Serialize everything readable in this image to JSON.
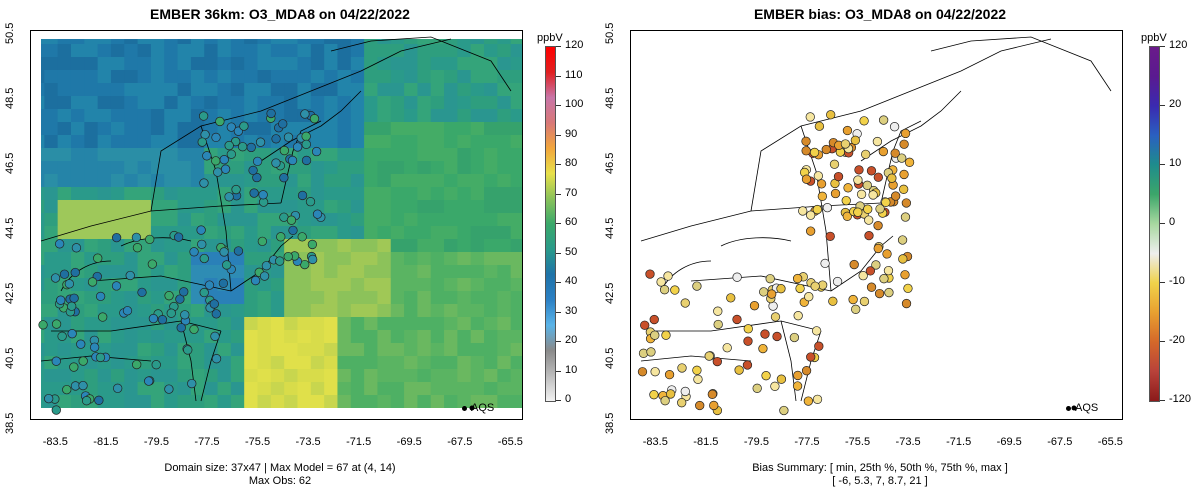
{
  "chart_data": [
    {
      "type": "heatmap",
      "title": "EMBER 36km: O3_MDA8 on 04/22/2022",
      "x_ticks": [
        "-83.5",
        "-81.5",
        "-79.5",
        "-77.5",
        "-75.5",
        "-73.5",
        "-71.5",
        "-69.5",
        "-67.5",
        "-65.5"
      ],
      "y_ticks": [
        "38.5",
        "40.5",
        "42.5",
        "44.5",
        "46.5",
        "48.5",
        "50.5"
      ],
      "xlim": [
        -84.5,
        -65
      ],
      "ylim": [
        38.5,
        50.5
      ],
      "colorbar": {
        "unit": "ppbV",
        "ticks": [
          "0",
          "10",
          "20",
          "30",
          "40",
          "50",
          "60",
          "70",
          "80",
          "90",
          "100",
          "110",
          "120"
        ],
        "range": [
          0,
          120
        ],
        "colors": [
          "#f2f2f2",
          "#bdbdbd",
          "#8a8a8a",
          "#5ab4e8",
          "#2c80c4",
          "#1f73a8",
          "#2a9a8a",
          "#3aa86a",
          "#8ac25a",
          "#e8e04a",
          "#f2a63c",
          "#d87878",
          "#c876a8",
          "#e02020",
          "#ff0000"
        ]
      },
      "legend": "AQS",
      "caption_lines": [
        "Domain size: 37x47 | Max Model = 67 at (4, 14)",
        "Max Obs: 62"
      ]
    },
    {
      "type": "scatter",
      "title": "EMBER bias: O3_MDA8 on 04/22/2022",
      "x_ticks": [
        "-83.5",
        "-81.5",
        "-79.5",
        "-77.5",
        "-75.5",
        "-73.5",
        "-71.5",
        "-69.5",
        "-67.5",
        "-65.5"
      ],
      "y_ticks": [
        "38.5",
        "40.5",
        "42.5",
        "44.5",
        "46.5",
        "48.5",
        "50.5"
      ],
      "xlim": [
        -84.5,
        -65
      ],
      "ylim": [
        38.5,
        50.5
      ],
      "colorbar": {
        "unit": "ppbV",
        "ticks": [
          "120",
          "20",
          "10",
          "0",
          "-10",
          "-20",
          "-120"
        ],
        "colors": [
          "#8b1a1a",
          "#b8423a",
          "#d4682a",
          "#e8a030",
          "#f0d24a",
          "#eeeeee",
          "#a8d8a0",
          "#3ca66a",
          "#1e8c8c",
          "#2a60c0",
          "#3a2ab0",
          "#5a1a90",
          "#6a1a8a"
        ]
      },
      "legend": "AQS",
      "bias_summary": {
        "labels": [
          "min",
          "25th %",
          "50th %",
          "75th %",
          "max"
        ],
        "values": [
          -6,
          5.3,
          7,
          8.7,
          21
        ]
      },
      "caption_lines": [
        "Bias Summary: [ min, 25th %, 50th %, 75th %, max ]",
        "[ -6,   5.3,   7,   8.7,   21 ]"
      ]
    }
  ]
}
